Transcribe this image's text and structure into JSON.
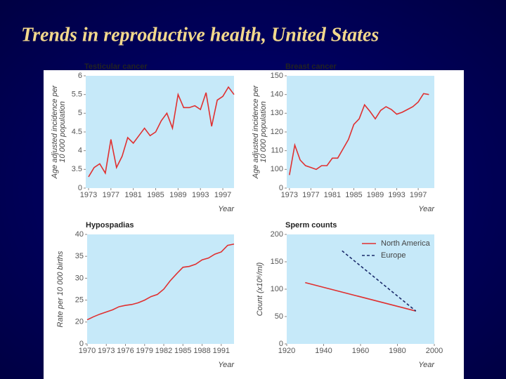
{
  "title": "Trends in reproductive health, United States",
  "chart_data": [
    {
      "type": "line",
      "title": "Testicular cancer",
      "ylabel": [
        "Age adjusted incidence per",
        "10 000 population"
      ],
      "xlabel": "Year",
      "x": [
        1973,
        1974,
        1975,
        1976,
        1977,
        1978,
        1979,
        1980,
        1981,
        1982,
        1983,
        1984,
        1985,
        1986,
        1987,
        1988,
        1989,
        1990,
        1991,
        1992,
        1993,
        1994,
        1995,
        1996,
        1997,
        1998,
        1999
      ],
      "values": [
        3.3,
        3.55,
        3.65,
        3.4,
        4.3,
        3.55,
        3.85,
        4.35,
        4.2,
        4.4,
        4.6,
        4.4,
        4.5,
        4.8,
        5.0,
        4.6,
        5.5,
        5.15,
        5.15,
        5.2,
        5.1,
        5.55,
        4.65,
        5.35,
        5.45,
        5.7,
        5.5
      ],
      "color": "#e03030",
      "xlim": [
        1972.5,
        1999
      ],
      "ylim": [
        0,
        6
      ],
      "axis_break": true,
      "xticks": [
        1973,
        1977,
        1981,
        1985,
        1989,
        1993,
        1997
      ],
      "yticks": [
        0,
        3.5,
        4,
        4.5,
        5,
        5.5,
        6
      ]
    },
    {
      "type": "line",
      "title": "Breast cancer",
      "ylabel": [
        "Age adjusted incidence per",
        "10 000 population"
      ],
      "xlabel": "Year",
      "x": [
        1973,
        1974,
        1975,
        1976,
        1977,
        1978,
        1979,
        1980,
        1981,
        1982,
        1983,
        1984,
        1985,
        1986,
        1987,
        1988,
        1989,
        1990,
        1991,
        1992,
        1993,
        1994,
        1995,
        1996,
        1997,
        1998,
        1999
      ],
      "values": [
        97,
        113,
        105,
        102,
        101,
        100,
        102,
        102,
        106,
        106,
        111,
        116,
        124,
        127,
        134.5,
        131,
        127,
        131.5,
        133.5,
        132,
        129.5,
        130.5,
        132,
        133.5,
        136,
        140.5,
        140
      ],
      "color": "#e03030",
      "xlim": [
        1972.5,
        2000
      ],
      "ylim": [
        0,
        150
      ],
      "axis_break": true,
      "xticks": [
        1973,
        1977,
        1981,
        1985,
        1989,
        1993,
        1997
      ],
      "yticks": [
        0,
        100,
        110,
        120,
        130,
        140,
        150
      ]
    },
    {
      "type": "line",
      "title": "Hypospadias",
      "ylabel": [
        "Rate per 10 000 births"
      ],
      "xlabel": "Year",
      "x": [
        1970,
        1971,
        1972,
        1973,
        1974,
        1975,
        1976,
        1977,
        1978,
        1979,
        1980,
        1981,
        1982,
        1983,
        1984,
        1985,
        1986,
        1987,
        1988,
        1989,
        1990,
        1991,
        1992,
        1993
      ],
      "values": [
        20.5,
        21.2,
        21.8,
        22.3,
        22.8,
        23.5,
        23.8,
        24,
        24.4,
        25,
        25.8,
        26.3,
        27.5,
        29.4,
        31,
        32.5,
        32.7,
        33.2,
        34.2,
        34.6,
        35.5,
        36,
        37.5,
        37.8
      ],
      "color": "#e03030",
      "xlim": [
        1970,
        1993
      ],
      "ylim": [
        0,
        40
      ],
      "axis_break": true,
      "xticks": [
        1970,
        1973,
        1976,
        1979,
        1982,
        1985,
        1988,
        1991
      ],
      "yticks": [
        0,
        20,
        25,
        30,
        35,
        40
      ]
    },
    {
      "type": "line",
      "title": "Sperm counts",
      "ylabel": [
        "Count (x10⁶/ml)"
      ],
      "xlabel": "Year",
      "series": [
        {
          "name": "North America",
          "color": "#e03030",
          "dash": false,
          "x": [
            1930,
            1990
          ],
          "values": [
            112,
            60
          ]
        },
        {
          "name": "Europe",
          "color": "#1a2a6a",
          "dash": true,
          "x": [
            1950,
            1990
          ],
          "values": [
            170,
            60
          ]
        }
      ],
      "xlim": [
        1920,
        2000
      ],
      "ylim": [
        0,
        200
      ],
      "axis_break": false,
      "xticks": [
        1920,
        1940,
        1960,
        1980,
        2000
      ],
      "yticks": [
        0,
        50,
        100,
        150,
        200
      ]
    }
  ]
}
